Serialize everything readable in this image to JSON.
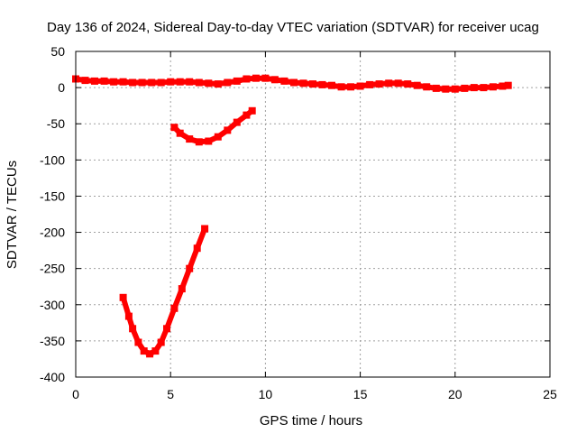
{
  "chart_data": {
    "type": "scatter",
    "title": "Day 136 of 2024, Sidereal Day-to-day VTEC variation (SDTVAR) for receiver ucag",
    "xlabel": "GPS time / hours",
    "ylabel": "SDTVAR / TECUs",
    "xlim": [
      0,
      25
    ],
    "ylim": [
      -400,
      50
    ],
    "xticks": [
      0,
      5,
      10,
      15,
      20,
      25
    ],
    "yticks": [
      50,
      0,
      -50,
      -100,
      -150,
      -200,
      -250,
      -300,
      -350,
      -400
    ],
    "grid": true,
    "legend": "none",
    "series": [
      {
        "name": "arc-main",
        "color": "#ff0000",
        "x": [
          0.0,
          0.5,
          1.0,
          1.5,
          2.0,
          2.5,
          3.0,
          3.5,
          4.0,
          4.5,
          5.0,
          5.5,
          6.0,
          6.5,
          7.0,
          7.5,
          8.0,
          8.5,
          9.0,
          9.5,
          10.0,
          10.5,
          11.0,
          11.5,
          12.0,
          12.5,
          13.0,
          13.5,
          14.0,
          14.5,
          15.0,
          15.5,
          16.0,
          16.5,
          17.0,
          17.5,
          18.0,
          18.5,
          19.0,
          19.5,
          20.0,
          20.5,
          21.0,
          21.5,
          22.0,
          22.5,
          22.8
        ],
        "y": [
          12,
          10,
          9,
          9,
          8,
          8,
          7,
          7,
          7,
          7,
          8,
          8,
          8,
          7,
          6,
          5,
          7,
          9,
          12,
          13,
          13,
          11,
          9,
          7,
          6,
          5,
          4,
          3,
          1,
          1,
          2,
          4,
          5,
          6,
          6,
          5,
          3,
          1,
          -1,
          -2,
          -2,
          -1,
          0,
          0,
          1,
          2,
          3
        ]
      },
      {
        "name": "arc-2",
        "color": "#ff0000",
        "x": [
          5.2,
          5.5,
          6.0,
          6.5,
          7.0,
          7.5,
          8.0,
          8.5,
          9.0,
          9.3
        ],
        "y": [
          -55,
          -63,
          -71,
          -75,
          -74,
          -68,
          -59,
          -48,
          -38,
          -32
        ]
      },
      {
        "name": "arc-3",
        "color": "#ff0000",
        "x": [
          2.5,
          2.8,
          3.0,
          3.3,
          3.6,
          3.9,
          4.2,
          4.5,
          4.8,
          5.2,
          5.6,
          6.0,
          6.4,
          6.8
        ],
        "y": [
          -290,
          -316,
          -333,
          -352,
          -364,
          -368,
          -364,
          -352,
          -333,
          -305,
          -278,
          -250,
          -222,
          -195
        ]
      }
    ]
  }
}
